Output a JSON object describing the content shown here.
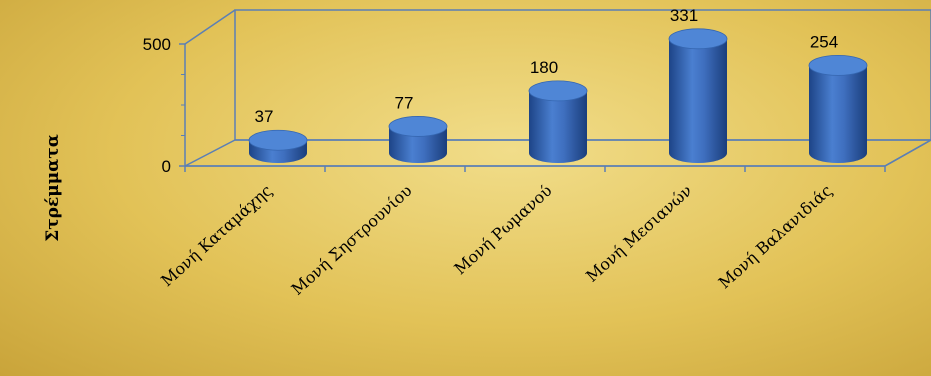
{
  "chart_data": {
    "type": "bar",
    "style": "3d-cylinder",
    "categories": [
      "Μονή Καταμάχης",
      "Μονή Σηστρουνίου",
      "Μονή Ρωμανού",
      "Μονή Μεσιανών",
      "Μονή Βαλανιδιάς"
    ],
    "values": [
      37,
      77,
      180,
      331,
      254
    ],
    "ylabel": "Στρέμματα",
    "yticks": [
      0,
      500
    ],
    "ylim": [
      0,
      500
    ],
    "grid": false,
    "colors": {
      "bar": "#3f6fbf",
      "bar_dark": "#1d4487",
      "bar_top": "#4f86d6",
      "axis": "#5b7fb5"
    }
  }
}
